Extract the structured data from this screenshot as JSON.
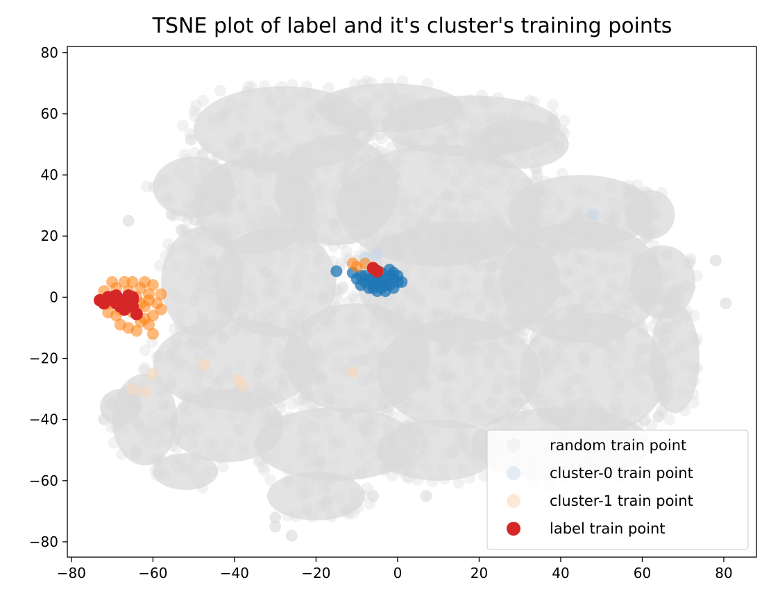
{
  "chart_data": {
    "type": "scatter",
    "title": "TSNE plot of label and it's cluster's training points",
    "xlabel": "",
    "ylabel": "",
    "xlim": [
      -81,
      88
    ],
    "ylim": [
      -85,
      82
    ],
    "xticks": [
      -80,
      -60,
      -40,
      -20,
      0,
      20,
      40,
      60,
      80
    ],
    "yticks": [
      -80,
      -60,
      -40,
      -20,
      0,
      20,
      40,
      60,
      80
    ],
    "xtick_labels": [
      "−80",
      "−60",
      "−40",
      "−20",
      "0",
      "20",
      "40",
      "60",
      "80"
    ],
    "ytick_labels": [
      "−80",
      "−60",
      "−40",
      "−20",
      "0",
      "20",
      "40",
      "60",
      "80"
    ],
    "grid": false,
    "legend_position": "lower-right",
    "series": [
      {
        "name": "random train point",
        "color": "#d9d9d9",
        "opacity": 0.35,
        "regions": [
          {
            "cx": -28,
            "cy": 55,
            "rx": 22,
            "ry": 14
          },
          {
            "cx": -2,
            "cy": 62,
            "rx": 18,
            "ry": 8
          },
          {
            "cx": 18,
            "cy": 56,
            "rx": 22,
            "ry": 10
          },
          {
            "cx": 30,
            "cy": 50,
            "rx": 12,
            "ry": 8
          },
          {
            "cx": -50,
            "cy": 36,
            "rx": 10,
            "ry": 10
          },
          {
            "cx": -35,
            "cy": 30,
            "rx": 15,
            "ry": 16
          },
          {
            "cx": -15,
            "cy": 35,
            "rx": 15,
            "ry": 18
          },
          {
            "cx": 10,
            "cy": 30,
            "rx": 25,
            "ry": 20
          },
          {
            "cx": 45,
            "cy": 28,
            "rx": 18,
            "ry": 12
          },
          {
            "cx": 62,
            "cy": 27,
            "rx": 6,
            "ry": 8
          },
          {
            "cx": -48,
            "cy": 5,
            "rx": 10,
            "ry": 18
          },
          {
            "cx": -30,
            "cy": 5,
            "rx": 15,
            "ry": 18
          },
          {
            "cx": 15,
            "cy": 5,
            "rx": 25,
            "ry": 20
          },
          {
            "cx": 45,
            "cy": 5,
            "rx": 20,
            "ry": 20
          },
          {
            "cx": 65,
            "cy": 5,
            "rx": 8,
            "ry": 12
          },
          {
            "cx": -40,
            "cy": -22,
            "rx": 20,
            "ry": 15
          },
          {
            "cx": -10,
            "cy": -20,
            "rx": 18,
            "ry": 18
          },
          {
            "cx": 15,
            "cy": -25,
            "rx": 20,
            "ry": 18
          },
          {
            "cx": 48,
            "cy": -25,
            "rx": 18,
            "ry": 20
          },
          {
            "cx": 68,
            "cy": -20,
            "rx": 6,
            "ry": 18
          },
          {
            "cx": -62,
            "cy": -40,
            "rx": 8,
            "ry": 15
          },
          {
            "cx": -42,
            "cy": -42,
            "rx": 14,
            "ry": 12
          },
          {
            "cx": -15,
            "cy": -48,
            "rx": 20,
            "ry": 12
          },
          {
            "cx": 10,
            "cy": -50,
            "rx": 15,
            "ry": 10
          },
          {
            "cx": 40,
            "cy": -48,
            "rx": 22,
            "ry": 12
          },
          {
            "cx": -20,
            "cy": -65,
            "rx": 12,
            "ry": 8
          },
          {
            "cx": -68,
            "cy": -36,
            "rx": 5,
            "ry": 6
          },
          {
            "cx": -52,
            "cy": -57,
            "rx": 8,
            "ry": 6
          }
        ],
        "sparse_points": [
          [
            -30,
            -75
          ],
          [
            -26,
            -78
          ],
          [
            -30,
            -72
          ],
          [
            -6,
            -65
          ],
          [
            7,
            -65
          ],
          [
            78,
            12
          ],
          [
            80.5,
            -2
          ],
          [
            66,
            14
          ],
          [
            66,
            -10
          ],
          [
            64,
            -39
          ],
          [
            -72,
            -40
          ],
          [
            -70,
            -35
          ],
          [
            -66,
            -31
          ],
          [
            -53,
            22
          ],
          [
            -66,
            25
          ]
        ]
      },
      {
        "name": "cluster-0 train point",
        "color": "#1f77b4",
        "points": [
          [
            -15,
            8.5
          ],
          [
            -11,
            8
          ],
          [
            -9,
            7
          ],
          [
            -8,
            5
          ],
          [
            -7,
            6
          ],
          [
            -6,
            4
          ],
          [
            -5,
            7
          ],
          [
            -4,
            5
          ],
          [
            -3,
            6
          ],
          [
            -2,
            4
          ],
          [
            -1,
            6
          ],
          [
            0,
            5
          ],
          [
            0,
            7
          ],
          [
            -1,
            3
          ],
          [
            -3,
            2
          ],
          [
            -5,
            2
          ],
          [
            -6,
            3
          ],
          [
            -7,
            3
          ],
          [
            -8,
            7
          ],
          [
            -4,
            8
          ],
          [
            -2,
            9
          ],
          [
            -9,
            4
          ],
          [
            -5,
            5
          ],
          [
            -3,
            4
          ],
          [
            -1,
            8
          ],
          [
            1,
            5
          ],
          [
            -6,
            6
          ],
          [
            -4,
            3
          ],
          [
            -10,
            6
          ],
          [
            -2,
            7
          ]
        ],
        "faint_points": [
          [
            48,
            27
          ],
          [
            -5,
            14
          ],
          [
            -8,
            13
          ]
        ]
      },
      {
        "name": "cluster-1 train point",
        "color": "#ff7f0e",
        "points": [
          [
            -72,
            2
          ],
          [
            -71,
            -2
          ],
          [
            -70,
            0
          ],
          [
            -69,
            3
          ],
          [
            -68,
            -4
          ],
          [
            -67,
            -1
          ],
          [
            -66,
            2
          ],
          [
            -65,
            -5
          ],
          [
            -64,
            0
          ],
          [
            -63,
            3
          ],
          [
            -62,
            -3
          ],
          [
            -61,
            1
          ],
          [
            -60,
            -6
          ],
          [
            -60,
            4
          ],
          [
            -61,
            -9
          ],
          [
            -63,
            -8
          ],
          [
            -65,
            5
          ],
          [
            -67,
            5
          ],
          [
            -69,
            -6
          ],
          [
            -71,
            -5
          ],
          [
            -62,
            5
          ],
          [
            -59,
            -2
          ],
          [
            -58,
            1
          ],
          [
            -58,
            -4
          ],
          [
            -64,
            -11
          ],
          [
            -66,
            -10
          ],
          [
            -68,
            -9
          ],
          [
            -73,
            -1
          ],
          [
            -60,
            -12
          ],
          [
            -62,
            -7
          ],
          [
            -70,
            5
          ],
          [
            -63,
            -2
          ],
          [
            -66,
            0
          ],
          [
            -61,
            -1
          ],
          [
            -8,
            11
          ],
          [
            -10,
            10
          ],
          [
            -11,
            11
          ]
        ],
        "faint_points": [
          [
            -47.5,
            -22
          ],
          [
            -38,
            -29
          ],
          [
            -39,
            -27
          ],
          [
            -11,
            -24.5
          ],
          [
            -60,
            -25
          ],
          [
            -62,
            -31
          ],
          [
            -65,
            -30
          ]
        ]
      },
      {
        "name": "label train point",
        "color": "#d62728",
        "points": [
          [
            -73,
            -1
          ],
          [
            -72,
            -2
          ],
          [
            -71,
            0
          ],
          [
            -70,
            0
          ],
          [
            -69,
            0.5
          ],
          [
            -69,
            -2
          ],
          [
            -68,
            -3
          ],
          [
            -67,
            -1
          ],
          [
            -67,
            -4
          ],
          [
            -66,
            -3
          ],
          [
            -66,
            0
          ],
          [
            -65,
            -1
          ],
          [
            -65,
            -3
          ],
          [
            -64,
            -5.5
          ],
          [
            -68,
            -2
          ],
          [
            -70,
            -1
          ],
          [
            -66,
            0.5
          ],
          [
            -65,
            0
          ],
          [
            -6,
            9.5
          ],
          [
            -5,
            8.5
          ]
        ]
      }
    ]
  }
}
